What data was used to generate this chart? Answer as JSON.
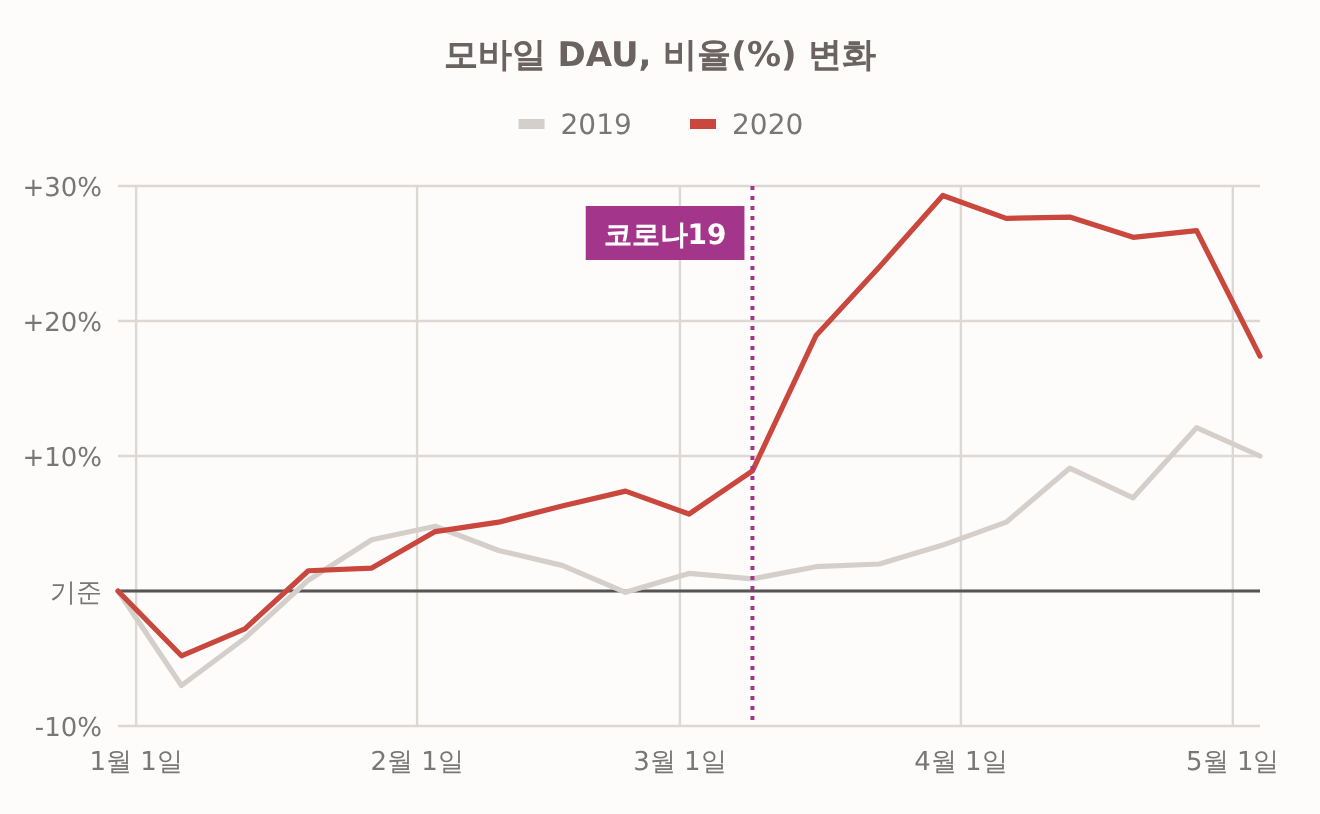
{
  "chart_data": {
    "type": "line",
    "title": "모바일 DAU, 비율(%) 변화",
    "x": [
      "2019-12-30",
      "2020-01-06",
      "2020-01-13",
      "2020-01-20",
      "2020-01-27",
      "2020-02-03",
      "2020-02-10",
      "2020-02-17",
      "2020-02-24",
      "2020-03-02",
      "2020-03-09",
      "2020-03-16",
      "2020-03-23",
      "2020-03-30",
      "2020-04-06",
      "2020-04-13",
      "2020-04-20",
      "2020-04-27",
      "2020-05-04"
    ],
    "series": [
      {
        "name": "2019",
        "color": "#d5cfcb",
        "values": [
          0,
          -7,
          -3.5,
          0.8,
          3.8,
          4.8,
          3,
          1.9,
          -0.1,
          1.3,
          0.9,
          1.8,
          2,
          3.4,
          5.1,
          9.1,
          6.9,
          12.1,
          10
        ]
      },
      {
        "name": "2020",
        "color": "#c9473c",
        "values": [
          0,
          -4.8,
          -2.8,
          1.5,
          1.7,
          4.4,
          5.1,
          6.3,
          7.4,
          5.7,
          8.9,
          18.9,
          24,
          29.3,
          27.6,
          27.7,
          26.2,
          26.7,
          17.4
        ]
      }
    ],
    "xlim": [
      "2019-12-30",
      "2020-05-04"
    ],
    "xticks": [
      {
        "value": "2020-01-01",
        "label": "1월 1일"
      },
      {
        "value": "2020-02-01",
        "label": "2월 1일"
      },
      {
        "value": "2020-03-01",
        "label": "3월 1일"
      },
      {
        "value": "2020-04-01",
        "label": "4월 1일"
      },
      {
        "value": "2020-05-01",
        "label": "5월 1일"
      }
    ],
    "ylim": [
      -10,
      30
    ],
    "yticks": [
      {
        "value": -10,
        "label": "-10%"
      },
      {
        "value": 0,
        "label": "기준"
      },
      {
        "value": 10,
        "label": "+10%"
      },
      {
        "value": 20,
        "label": "+20%"
      },
      {
        "value": 30,
        "label": "+30%"
      }
    ],
    "grid": true,
    "legend": "top",
    "ref_lines": [
      {
        "axis": "y",
        "value": 0,
        "color": "#555555"
      },
      {
        "axis": "x",
        "value": "2020-03-09",
        "label": "코로나19",
        "color": "#a3368b",
        "line_style": "dotted"
      }
    ]
  }
}
